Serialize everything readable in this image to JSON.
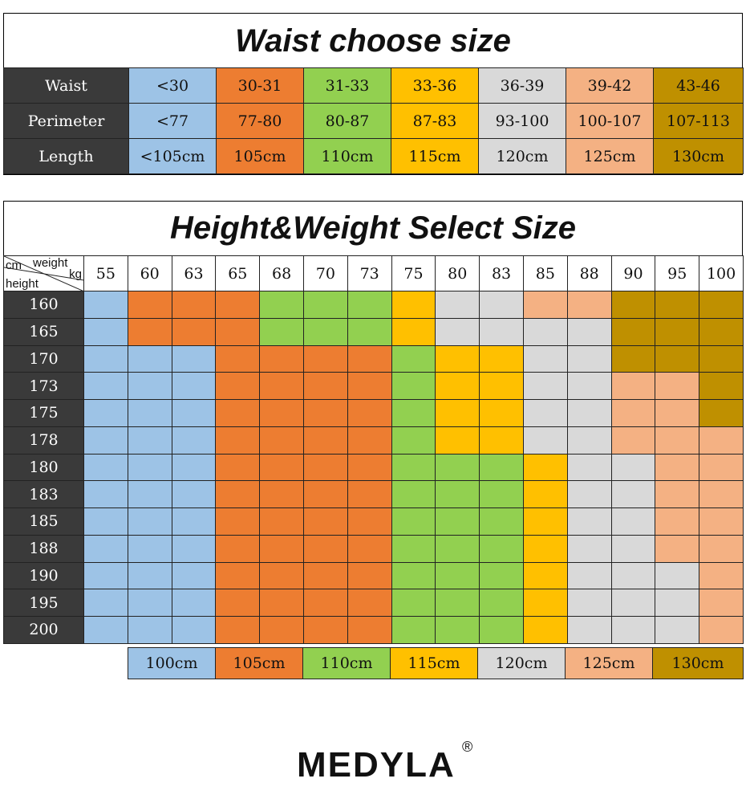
{
  "waist_table": {
    "title": "Waist choose size",
    "rows": [
      {
        "label": "Waist",
        "cells": [
          "<30",
          "30-31",
          "31-33",
          "33-36",
          "36-39",
          "39-42",
          "43-46"
        ]
      },
      {
        "label": "Perimeter",
        "cells": [
          "<77",
          "77-80",
          "80-87",
          "87-83",
          "93-100",
          "100-107",
          "107-113"
        ]
      },
      {
        "label": "Length",
        "cells": [
          "<105cm",
          "105cm",
          "110cm",
          "115cm",
          "120cm",
          "125cm",
          "130cm"
        ]
      }
    ]
  },
  "size_colors": [
    "#9dc3e6",
    "#ed7d31",
    "#92d050",
    "#ffc000",
    "#d9d9d9",
    "#f4b183",
    "#bf9000"
  ],
  "hw_table": {
    "title": "Height&Weight Select Size",
    "corner": {
      "top_right": "weight",
      "kg": "kg",
      "cm": "cm",
      "height": "height"
    },
    "weights": [
      "55",
      "60",
      "63",
      "65",
      "68",
      "70",
      "73",
      "75",
      "80",
      "83",
      "85",
      "88",
      "90",
      "95",
      "100"
    ],
    "heights": [
      "160",
      "165",
      "170",
      "173",
      "175",
      "178",
      "180",
      "183",
      "185",
      "188",
      "190",
      "195",
      "200"
    ],
    "grid": [
      [
        0,
        1,
        1,
        1,
        2,
        2,
        2,
        3,
        4,
        4,
        5,
        5,
        6,
        6,
        6
      ],
      [
        0,
        1,
        1,
        1,
        2,
        2,
        2,
        3,
        4,
        4,
        4,
        4,
        6,
        6,
        6
      ],
      [
        0,
        0,
        0,
        1,
        1,
        1,
        1,
        2,
        3,
        3,
        4,
        4,
        6,
        6,
        6
      ],
      [
        0,
        0,
        0,
        1,
        1,
        1,
        1,
        2,
        3,
        3,
        4,
        4,
        5,
        5,
        6
      ],
      [
        0,
        0,
        0,
        1,
        1,
        1,
        1,
        2,
        3,
        3,
        4,
        4,
        5,
        5,
        6
      ],
      [
        0,
        0,
        0,
        1,
        1,
        1,
        1,
        2,
        3,
        3,
        4,
        4,
        5,
        5,
        5
      ],
      [
        0,
        0,
        0,
        1,
        1,
        1,
        1,
        2,
        2,
        2,
        3,
        4,
        4,
        5,
        5
      ],
      [
        0,
        0,
        0,
        1,
        1,
        1,
        1,
        2,
        2,
        2,
        3,
        4,
        4,
        5,
        5
      ],
      [
        0,
        0,
        0,
        1,
        1,
        1,
        1,
        2,
        2,
        2,
        3,
        4,
        4,
        5,
        5
      ],
      [
        0,
        0,
        0,
        1,
        1,
        1,
        1,
        2,
        2,
        2,
        3,
        4,
        4,
        5,
        5
      ],
      [
        0,
        0,
        0,
        1,
        1,
        1,
        1,
        2,
        2,
        2,
        3,
        4,
        4,
        4,
        5
      ],
      [
        0,
        0,
        0,
        1,
        1,
        1,
        1,
        2,
        2,
        2,
        3,
        4,
        4,
        4,
        5
      ],
      [
        0,
        0,
        0,
        1,
        1,
        1,
        1,
        2,
        2,
        2,
        3,
        4,
        4,
        4,
        5
      ]
    ],
    "legend": [
      "100cm",
      "105cm",
      "110cm",
      "115cm",
      "120cm",
      "125cm",
      "130cm"
    ]
  },
  "brand": {
    "name": "MEDYLA",
    "mark": "®"
  }
}
